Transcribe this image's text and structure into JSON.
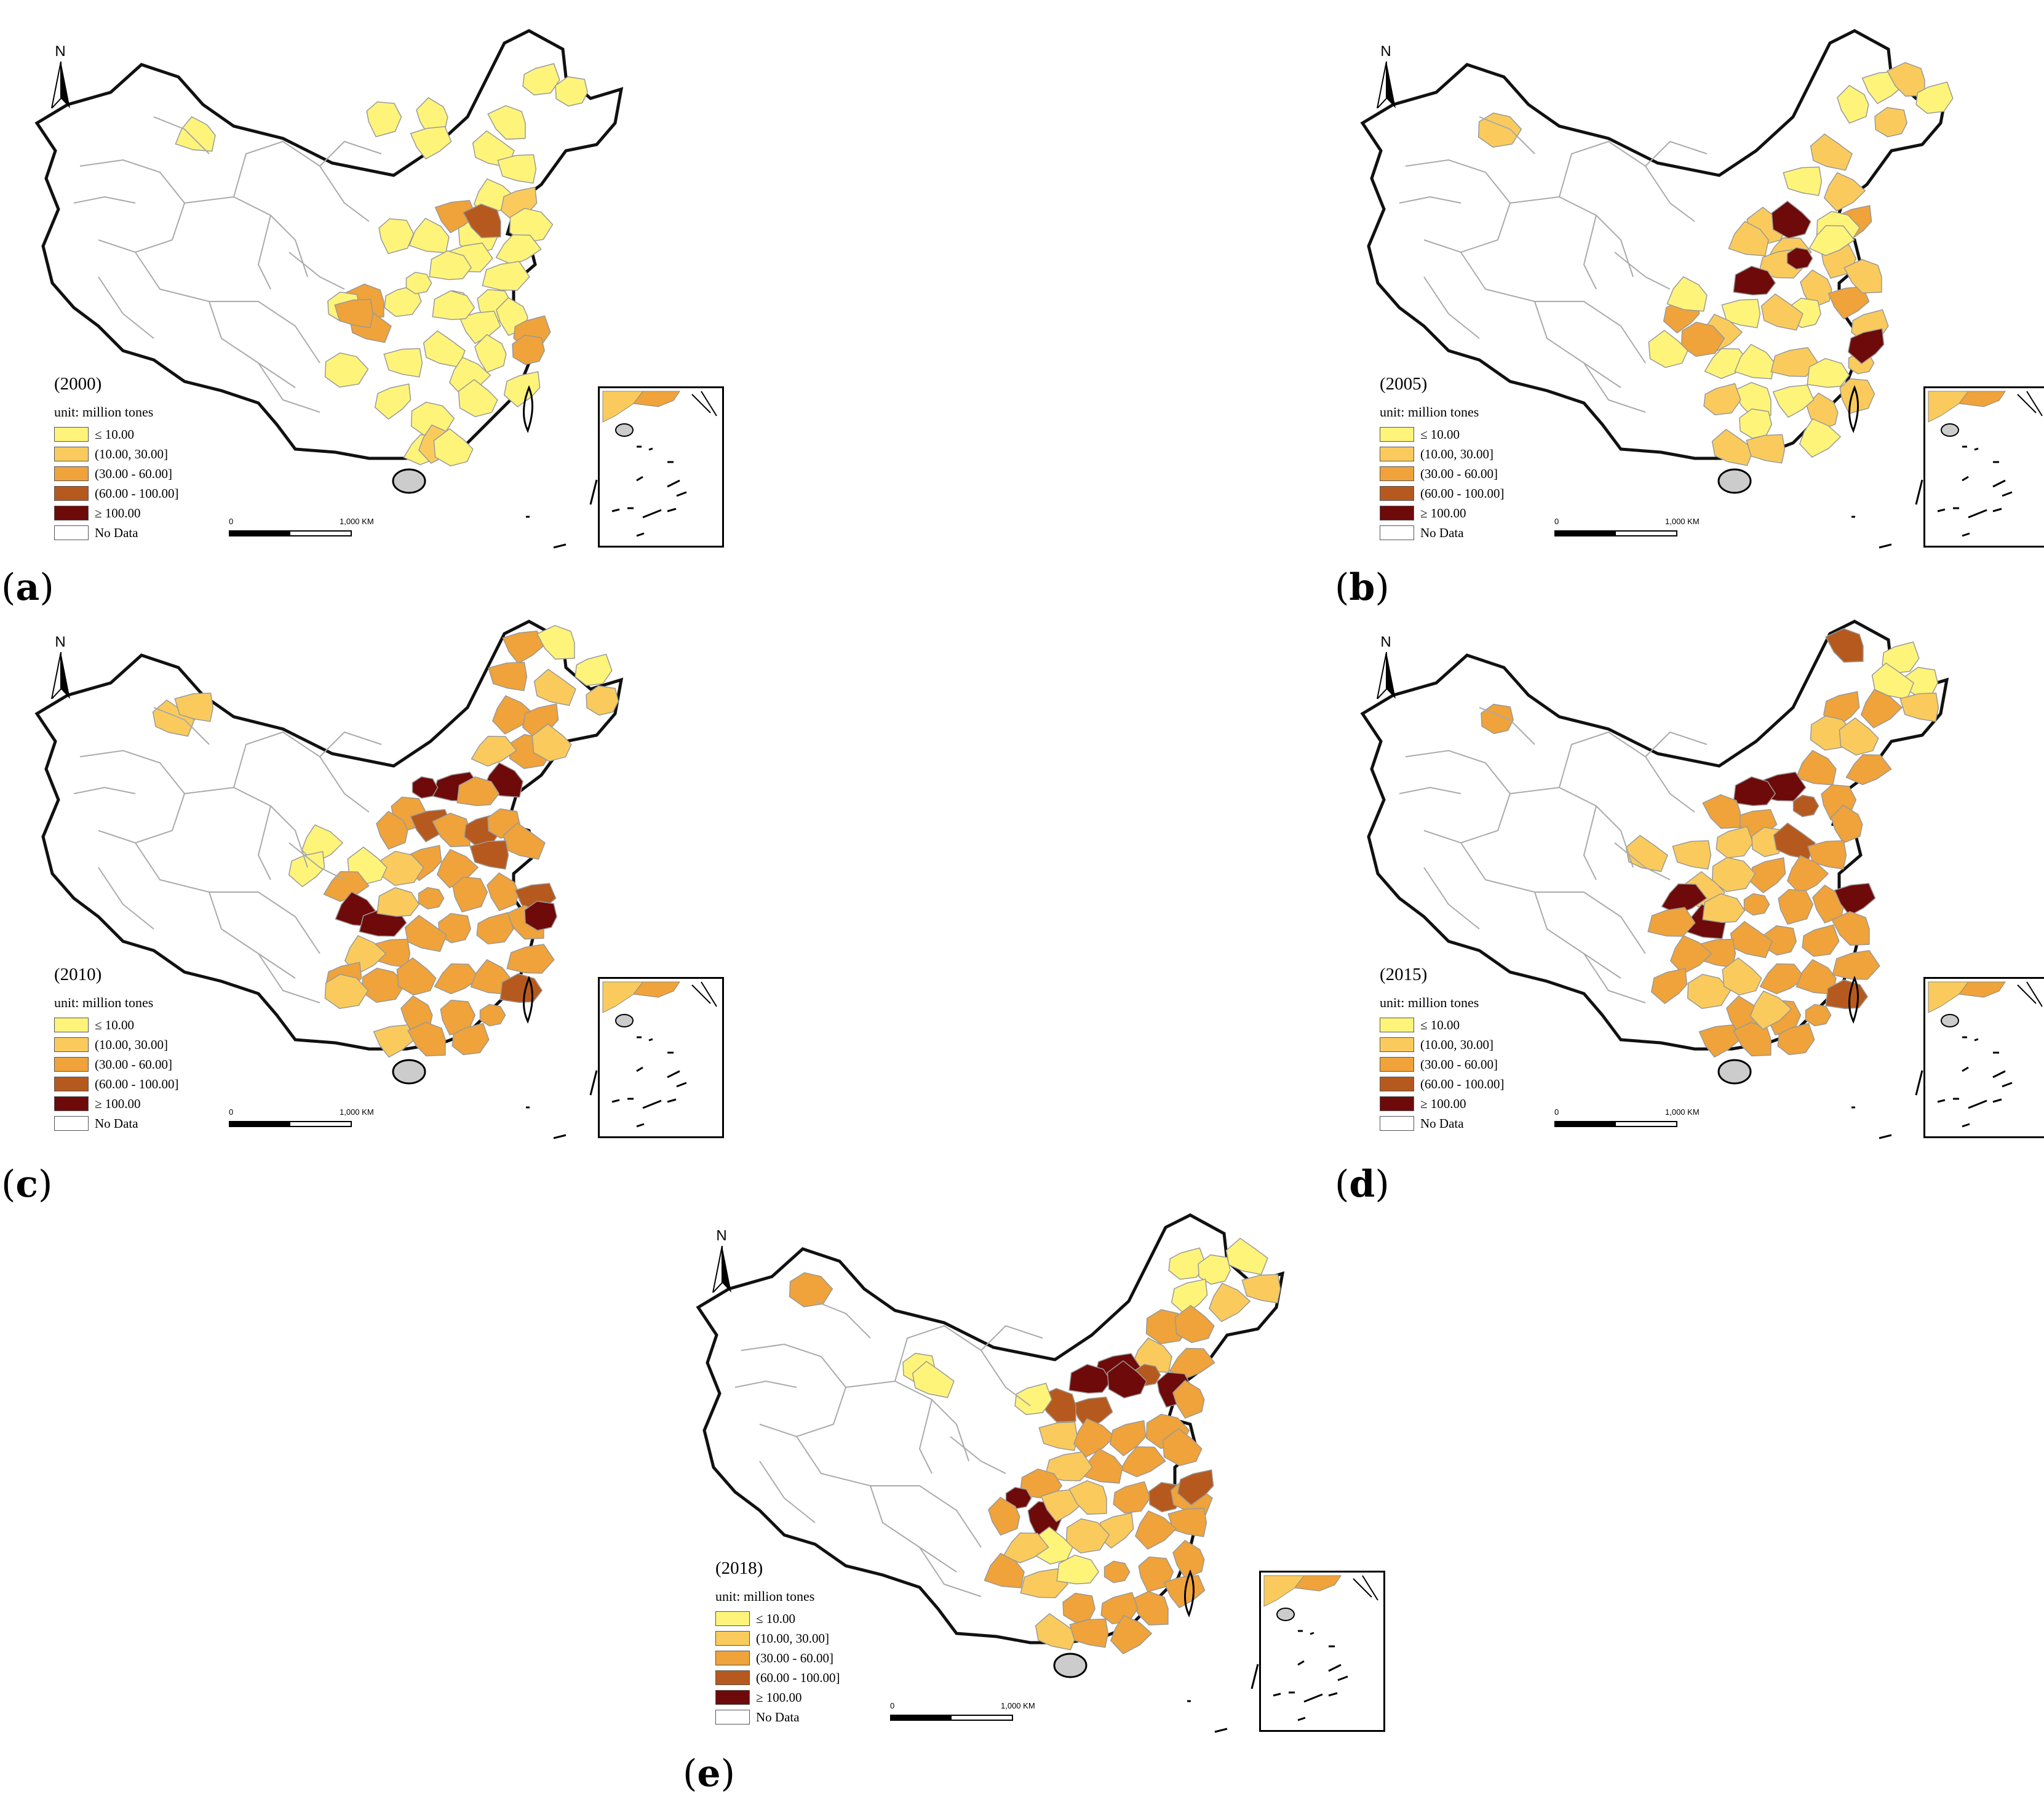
{
  "legend": {
    "unit": "unit: million tones",
    "items": [
      {
        "label": "≤ 10.00",
        "color": "#FFF47A"
      },
      {
        "label": "(10.00, 30.00]",
        "color": "#FACB5C"
      },
      {
        "label": "(30.00 - 60.00]",
        "color": "#EFA33A"
      },
      {
        "label": "(60.00 - 100.00]",
        "color": "#B6591E"
      },
      {
        "label": "≥ 100.00",
        "color": "#6E0A0A"
      },
      {
        "label": "No Data",
        "color": "#FFFFFF"
      }
    ]
  },
  "north_label": "N",
  "scale": {
    "start": "0",
    "end": "1,000 KM"
  },
  "panels": [
    {
      "id": "a",
      "year": "(2000)",
      "paren_open": "(",
      "letter": "a",
      "paren_close": ")"
    },
    {
      "id": "b",
      "year": "(2005)",
      "paren_open": "(",
      "letter": "b",
      "paren_close": ")"
    },
    {
      "id": "c",
      "year": "(2010)",
      "paren_open": "(",
      "letter": "c",
      "paren_close": ")"
    },
    {
      "id": "d",
      "year": "(2015)",
      "paren_open": "(",
      "letter": "d",
      "paren_close": ")"
    },
    {
      "id": "e",
      "year": "(2018)",
      "paren_open": "(",
      "letter": "e",
      "paren_close": ")"
    }
  ]
}
